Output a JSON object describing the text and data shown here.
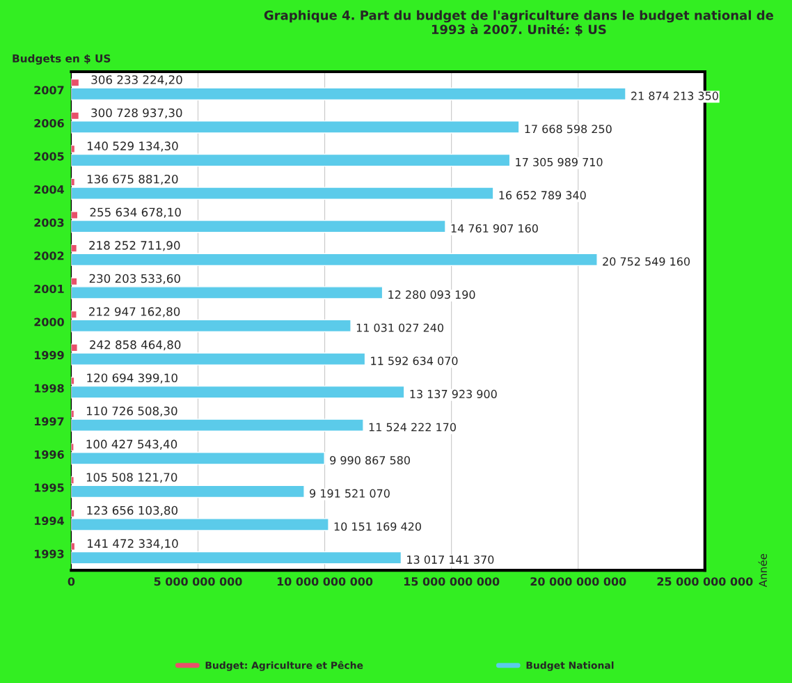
{
  "chart_data": {
    "type": "bar",
    "orientation": "horizontal",
    "title": "Graphique 4. Part du budget de l'agriculture dans le budget national de 1993 à 2007. Unité: $ US",
    "annotations": [
      "Budgets en $ US"
    ],
    "ylabel": "Année",
    "categories": [
      "2007",
      "2006",
      "2005",
      "2004",
      "2003",
      "2002",
      "2001",
      "2000",
      "1999",
      "1998",
      "1997",
      "1996",
      "1995",
      "1994",
      "1993"
    ],
    "series": [
      {
        "name": "Budget: Agriculture et Pêche",
        "color": "#e8506a",
        "values": [
          306233224.2,
          300728937.3,
          140529134.3,
          136675881.2,
          255634678.1,
          218252711.9,
          230203533.6,
          212947162.8,
          242858464.8,
          120694399.1,
          110726508.3,
          100427543.4,
          105508121.7,
          123656103.8,
          141472334.1
        ],
        "value_labels": [
          "306 233 224,20",
          "300 728 937,30",
          "140 529 134,30",
          "136 675 881,20",
          "255 634 678,10",
          "218 252 711,90",
          "230 203 533,60",
          "212 947 162,80",
          "242 858 464,80",
          "120 694 399,10",
          "110 726 508,30",
          "100 427 543,40",
          "105 508 121,70",
          "123 656 103,80",
          "141 472 334,10"
        ]
      },
      {
        "name": "Budget National",
        "color": "#5bcbea",
        "values": [
          21874213350,
          17668598250,
          17305989710,
          16652789340,
          14761907160,
          20752549160,
          12280093190,
          11031027240,
          11592634070,
          13137923900,
          11524222170,
          9990867580,
          9191521070,
          10151169420,
          13017141370
        ],
        "value_labels": [
          "21 874 213 350",
          "17 668 598 250",
          "17 305 989 710",
          "16 652 789 340",
          "14 761 907 160",
          "20 752 549 160",
          "12 280 093 190",
          "11 031 027 240",
          "11 592 634 070",
          "13 137 923 900",
          "11 524 222 170",
          "9 990 867 580",
          "9 191 521 070",
          "10 151 169 420",
          "13 017 141 370"
        ]
      }
    ],
    "xlim": [
      0,
      25000000000
    ],
    "xticks": [
      0,
      {
        "value": 5000000000,
        "label": "5 000 000 000"
      },
      {
        "value": 10000000000,
        "label": "10 000 000 000"
      },
      {
        "value": 15000000000,
        "label": "15 000 000 000"
      },
      {
        "value": 20000000000,
        "label": "20 000 000 000"
      },
      {
        "value": 25000000000,
        "label": "25 000 000 000"
      }
    ],
    "grid": "x",
    "legend": "bottom"
  }
}
